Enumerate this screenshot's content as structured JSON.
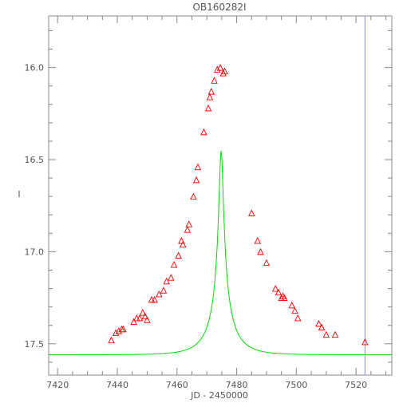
{
  "chart_data": {
    "type": "scatter",
    "title": "OB160282I",
    "xlabel": "JD - 2450000",
    "ylabel": "I",
    "xlim": [
      7417,
      7532
    ],
    "ylim": [
      17.67,
      15.72
    ],
    "y_inverted": true,
    "x_ticks": [
      7420,
      7440,
      7460,
      7480,
      7500,
      7520
    ],
    "x_tick_labels": [
      "7420",
      "7440",
      "7460",
      "7480",
      "7500",
      "7520"
    ],
    "y_ticks": [
      16.0,
      16.5,
      17.0,
      17.5
    ],
    "y_tick_labels": [
      "16.0",
      "16.5",
      "17.0",
      "17.5"
    ],
    "vertical_marker_x": 7523,
    "grid": false,
    "colors": {
      "data_points": "#ff0000",
      "model_curve": "#00dd00",
      "vertical_marker": "#8888ff",
      "axes": "#888888"
    },
    "series": [
      {
        "marker": "triangle",
        "x": [
          7438,
          7439.5,
          7440.5,
          7441.5,
          7442,
          7445.5,
          7446.5,
          7447.5,
          7448.5,
          7449.3,
          7450,
          7451.5,
          7452.5,
          7454,
          7455.5,
          7456.5,
          7458,
          7459,
          7460.5,
          7461.5,
          7462,
          7463.5,
          7464,
          7465.5,
          7466.5,
          7467,
          7469,
          7470.5,
          7471,
          7471.5,
          7472.5,
          7473.5,
          7474.5,
          7475.5,
          7476,
          7485,
          7487,
          7488,
          7490,
          7493,
          7494,
          7495,
          7495.5,
          7496,
          7498.5,
          7499.5,
          7500.5,
          7507.5,
          7508.5,
          7510,
          7513,
          7523
        ],
        "y": [
          17.48,
          17.44,
          17.43,
          17.42,
          17.42,
          17.38,
          17.36,
          17.36,
          17.33,
          17.35,
          17.37,
          17.26,
          17.26,
          17.23,
          17.21,
          17.16,
          17.14,
          17.07,
          17.02,
          16.94,
          16.96,
          16.88,
          16.85,
          16.7,
          16.61,
          16.54,
          16.35,
          16.22,
          16.16,
          16.13,
          16.07,
          16.01,
          16.0,
          16.03,
          16.02,
          16.79,
          16.94,
          17.0,
          17.06,
          17.2,
          17.22,
          17.25,
          17.24,
          17.25,
          17.29,
          17.32,
          17.36,
          17.39,
          17.41,
          17.45,
          17.45,
          17.49
        ]
      }
    ]
  }
}
